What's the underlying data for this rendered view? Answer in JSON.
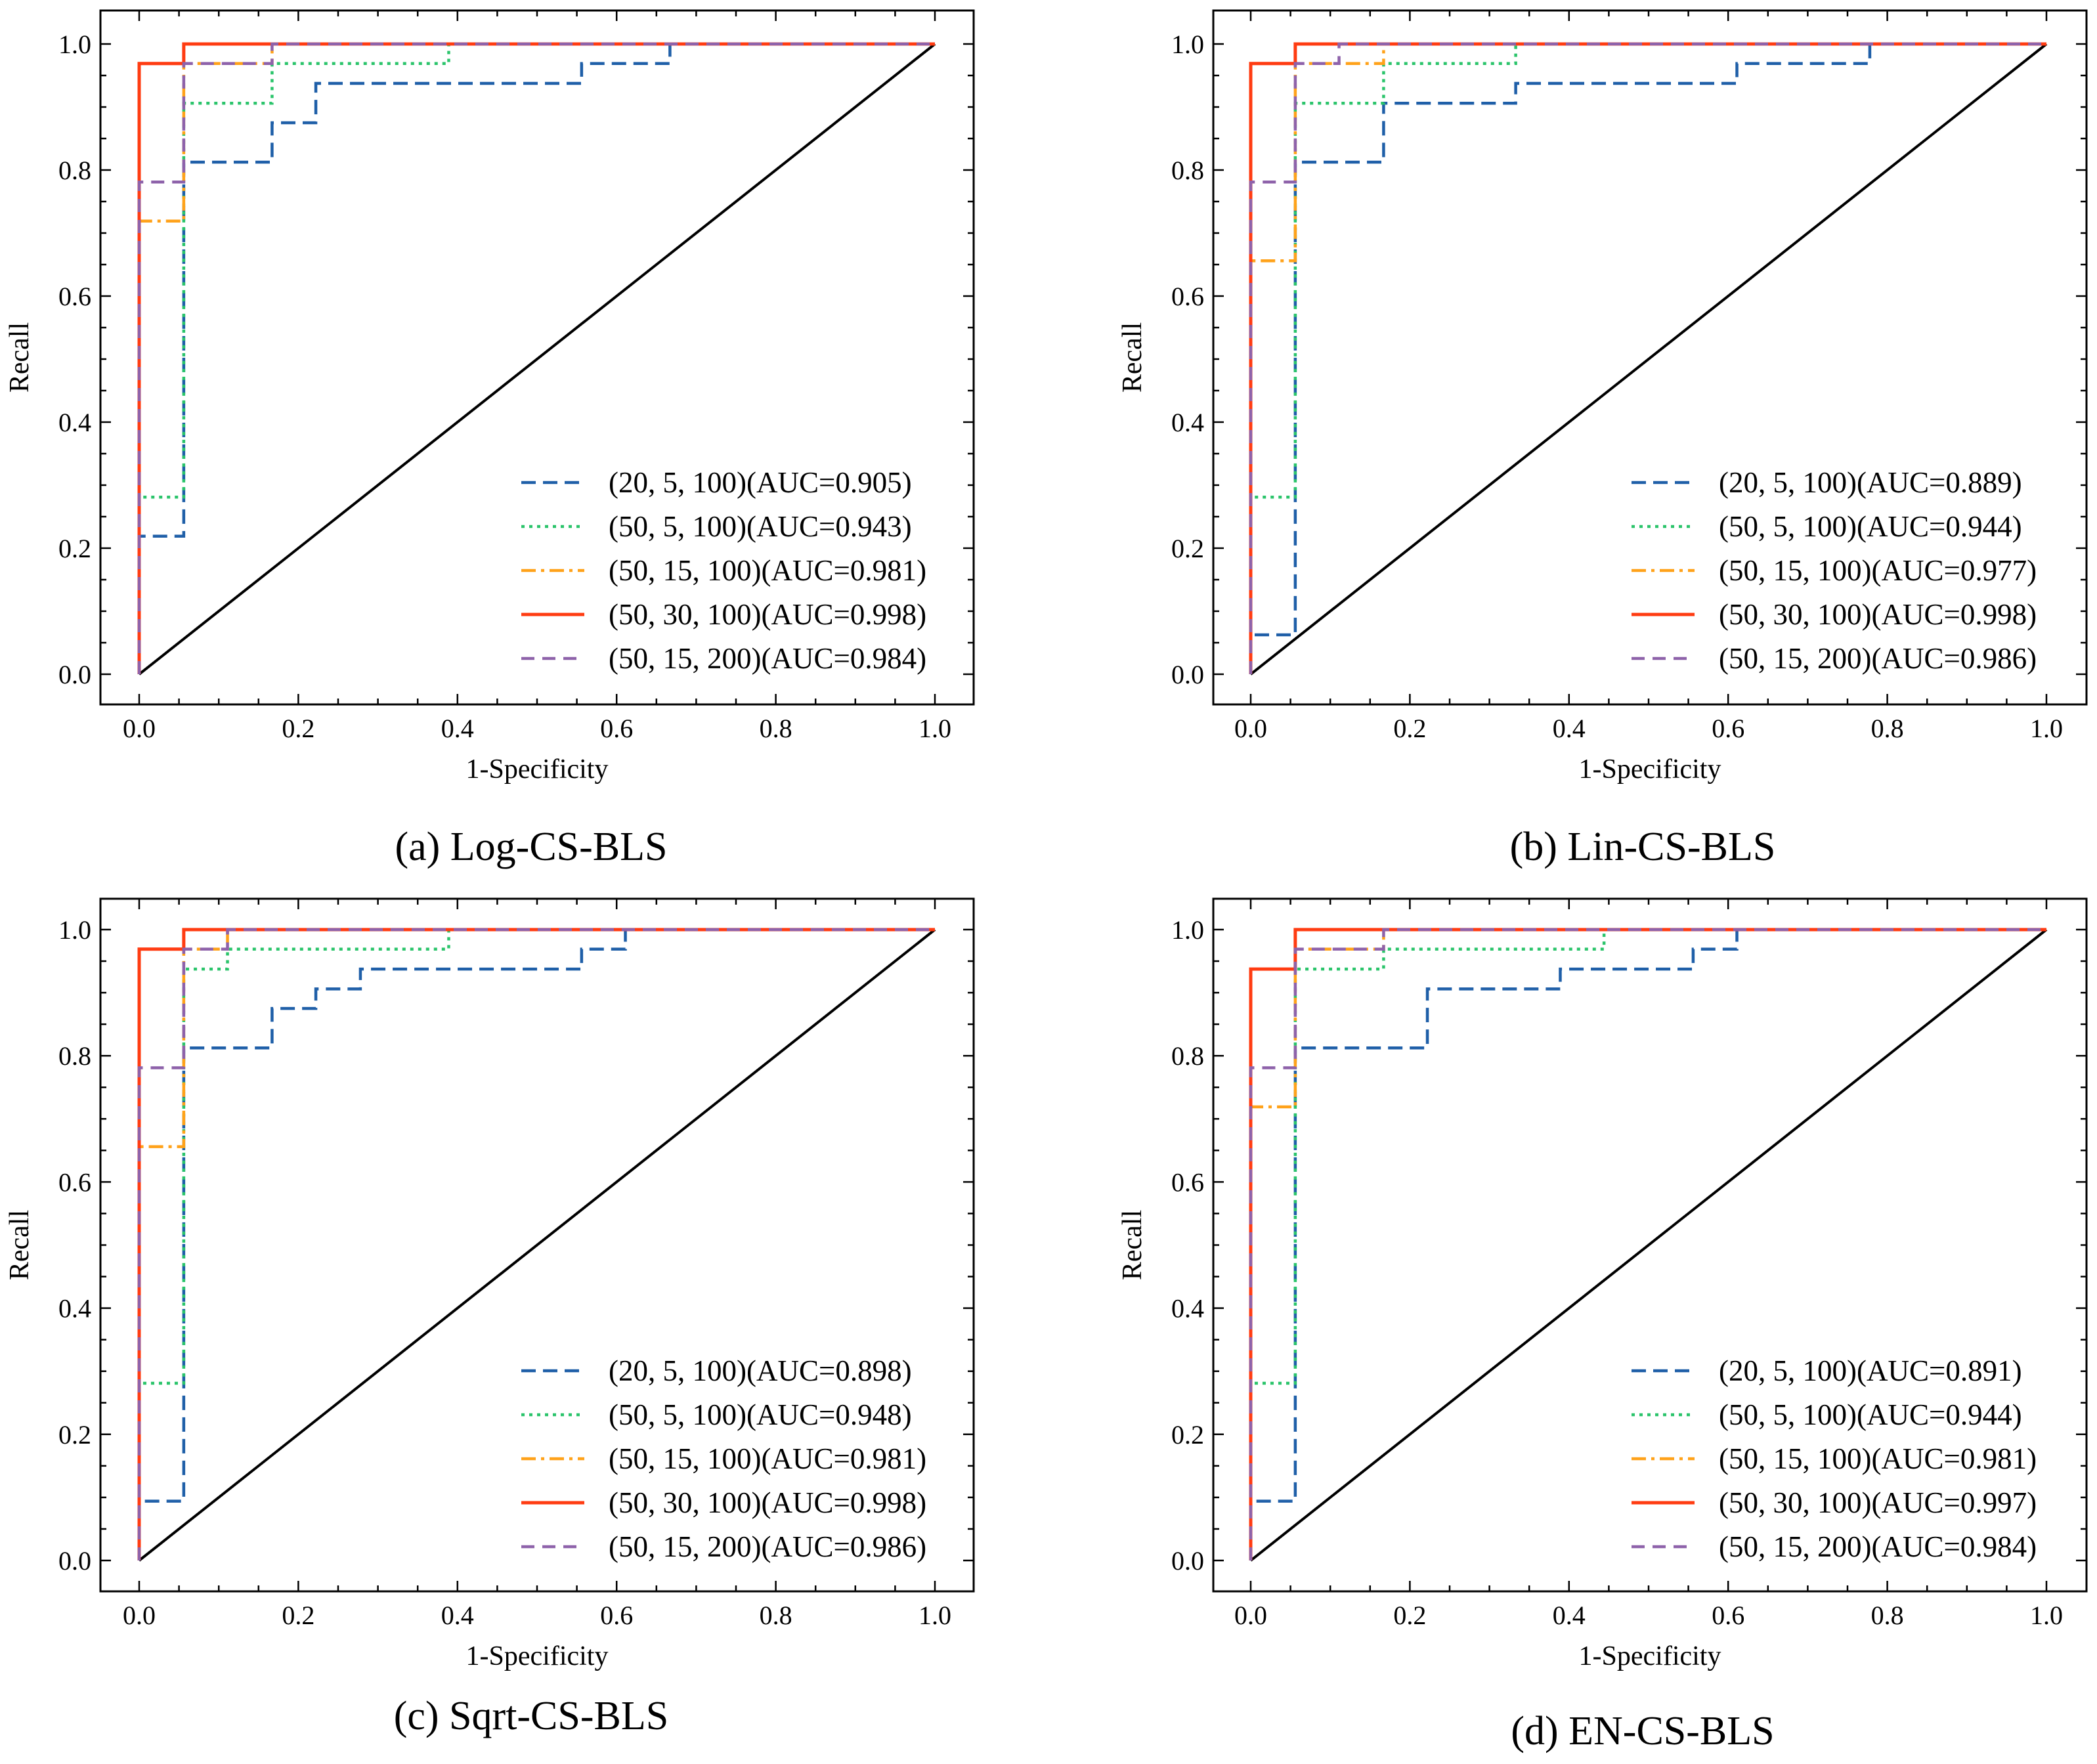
{
  "chart_data": [
    {
      "type": "line",
      "caption": "(a) Log-CS-BLS",
      "xlabel": "1-Specificity",
      "ylabel": "Recall",
      "xlim": [
        0,
        1
      ],
      "ylim": [
        0,
        1
      ],
      "xticks": [
        "0.0",
        "0.2",
        "0.4",
        "0.6",
        "0.8",
        "1.0"
      ],
      "yticks": [
        "0.0",
        "0.2",
        "0.4",
        "0.6",
        "0.8",
        "1.0"
      ],
      "legend_position": "lower-right",
      "series": [
        {
          "name": "(20, 5, 100)(AUC=0.905)",
          "style": "dashed",
          "color": "#1f5fa8",
          "steps": [
            [
              0,
              0.219
            ],
            [
              0.056,
              0.8125
            ],
            [
              0.167,
              0.875
            ],
            [
              0.222,
              0.9375
            ],
            [
              0.556,
              0.969
            ],
            [
              0.667,
              1
            ]
          ]
        },
        {
          "name": "(50, 5, 100)(AUC=0.943)",
          "style": "dotted",
          "color": "#2bc46b",
          "steps": [
            [
              0,
              0.281
            ],
            [
              0.056,
              0.906
            ],
            [
              0.167,
              0.969
            ],
            [
              0.389,
              1
            ]
          ]
        },
        {
          "name": "(50, 15, 100)(AUC=0.981)",
          "style": "dashdot",
          "color": "#ffa21a",
          "steps": [
            [
              0,
              0.719
            ],
            [
              0.056,
              0.969
            ],
            [
              0.167,
              1
            ]
          ]
        },
        {
          "name": "(50, 30, 100)(AUC=0.998)",
          "style": "solid",
          "color": "#ff3c12",
          "steps": [
            [
              0,
              0.969
            ],
            [
              0.056,
              1
            ]
          ]
        },
        {
          "name": "(50, 15, 200)(AUC=0.984)",
          "style": "dashed2",
          "color": "#8e62aa",
          "steps": [
            [
              0,
              0.781
            ],
            [
              0.056,
              0.969
            ],
            [
              0.167,
              1
            ]
          ]
        }
      ]
    },
    {
      "type": "line",
      "caption": "(b) Lin-CS-BLS",
      "xlabel": "1-Specificity",
      "ylabel": "Recall",
      "xlim": [
        0,
        1
      ],
      "ylim": [
        0,
        1
      ],
      "xticks": [
        "0.0",
        "0.2",
        "0.4",
        "0.6",
        "0.8",
        "1.0"
      ],
      "yticks": [
        "0.0",
        "0.2",
        "0.4",
        "0.6",
        "0.8",
        "1.0"
      ],
      "legend_position": "lower-right",
      "series": [
        {
          "name": "(20, 5, 100)(AUC=0.889)",
          "style": "dashed",
          "color": "#1f5fa8",
          "steps": [
            [
              0,
              0.0625
            ],
            [
              0.056,
              0.8125
            ],
            [
              0.167,
              0.906
            ],
            [
              0.333,
              0.9375
            ],
            [
              0.611,
              0.969
            ],
            [
              0.778,
              1
            ]
          ]
        },
        {
          "name": "(50, 5, 100)(AUC=0.944)",
          "style": "dotted",
          "color": "#2bc46b",
          "steps": [
            [
              0,
              0.281
            ],
            [
              0.056,
              0.906
            ],
            [
              0.167,
              0.969
            ],
            [
              0.333,
              1
            ]
          ]
        },
        {
          "name": "(50, 15, 100)(AUC=0.977)",
          "style": "dashdot",
          "color": "#ffa21a",
          "steps": [
            [
              0,
              0.656
            ],
            [
              0.056,
              0.969
            ],
            [
              0.167,
              1
            ]
          ]
        },
        {
          "name": "(50, 30, 100)(AUC=0.998)",
          "style": "solid",
          "color": "#ff3c12",
          "steps": [
            [
              0,
              0.969
            ],
            [
              0.056,
              1
            ]
          ]
        },
        {
          "name": "(50, 15, 200)(AUC=0.986)",
          "style": "dashed2",
          "color": "#8e62aa",
          "steps": [
            [
              0,
              0.781
            ],
            [
              0.056,
              0.969
            ],
            [
              0.111,
              1
            ]
          ]
        }
      ]
    },
    {
      "type": "line",
      "caption": "(c) Sqrt-CS-BLS",
      "xlabel": "1-Specificity",
      "ylabel": "Recall",
      "xlim": [
        0,
        1
      ],
      "ylim": [
        0,
        1
      ],
      "xticks": [
        "0.0",
        "0.2",
        "0.4",
        "0.6",
        "0.8",
        "1.0"
      ],
      "yticks": [
        "0.0",
        "0.2",
        "0.4",
        "0.6",
        "0.8",
        "1.0"
      ],
      "legend_position": "lower-right",
      "series": [
        {
          "name": "(20, 5, 100)(AUC=0.898)",
          "style": "dashed",
          "color": "#1f5fa8",
          "steps": [
            [
              0,
              0.094
            ],
            [
              0.056,
              0.8125
            ],
            [
              0.167,
              0.875
            ],
            [
              0.222,
              0.906
            ],
            [
              0.278,
              0.9375
            ],
            [
              0.556,
              0.969
            ],
            [
              0.611,
              1
            ]
          ]
        },
        {
          "name": "(50, 5, 100)(AUC=0.948)",
          "style": "dotted",
          "color": "#2bc46b",
          "steps": [
            [
              0,
              0.281
            ],
            [
              0.056,
              0.9375
            ],
            [
              0.111,
              0.969
            ],
            [
              0.389,
              1
            ]
          ]
        },
        {
          "name": "(50, 15, 100)(AUC=0.981)",
          "style": "dashdot",
          "color": "#ffa21a",
          "steps": [
            [
              0,
              0.656
            ],
            [
              0.056,
              0.969
            ],
            [
              0.111,
              1
            ]
          ]
        },
        {
          "name": "(50, 30, 100)(AUC=0.998)",
          "style": "solid",
          "color": "#ff3c12",
          "steps": [
            [
              0,
              0.969
            ],
            [
              0.056,
              1
            ]
          ]
        },
        {
          "name": "(50, 15, 200)(AUC=0.986)",
          "style": "dashed2",
          "color": "#8e62aa",
          "steps": [
            [
              0,
              0.781
            ],
            [
              0.056,
              0.969
            ],
            [
              0.111,
              1
            ]
          ]
        }
      ]
    },
    {
      "type": "line",
      "caption": "(d) EN-CS-BLS",
      "xlabel": "1-Specificity",
      "ylabel": "Recall",
      "xlim": [
        0,
        1
      ],
      "ylim": [
        0,
        1
      ],
      "xticks": [
        "0.0",
        "0.2",
        "0.4",
        "0.6",
        "0.8",
        "1.0"
      ],
      "yticks": [
        "0.0",
        "0.2",
        "0.4",
        "0.6",
        "0.8",
        "1.0"
      ],
      "legend_position": "lower-right",
      "series": [
        {
          "name": "(20, 5, 100)(AUC=0.891)",
          "style": "dashed",
          "color": "#1f5fa8",
          "steps": [
            [
              0,
              0.094
            ],
            [
              0.056,
              0.8125
            ],
            [
              0.222,
              0.906
            ],
            [
              0.389,
              0.9375
            ],
            [
              0.556,
              0.969
            ],
            [
              0.611,
              1
            ]
          ]
        },
        {
          "name": "(50, 5, 100)(AUC=0.944)",
          "style": "dotted",
          "color": "#2bc46b",
          "steps": [
            [
              0,
              0.281
            ],
            [
              0.056,
              0.9375
            ],
            [
              0.167,
              0.969
            ],
            [
              0.444,
              1
            ]
          ]
        },
        {
          "name": "(50, 15, 100)(AUC=0.981)",
          "style": "dashdot",
          "color": "#ffa21a",
          "steps": [
            [
              0,
              0.719
            ],
            [
              0.056,
              0.969
            ],
            [
              0.167,
              1
            ]
          ]
        },
        {
          "name": "(50, 30, 100)(AUC=0.997)",
          "style": "solid",
          "color": "#ff3c12",
          "steps": [
            [
              0,
              0.9375
            ],
            [
              0.056,
              1
            ]
          ]
        },
        {
          "name": "(50, 15, 200)(AUC=0.984)",
          "style": "dashed2",
          "color": "#8e62aa",
          "steps": [
            [
              0,
              0.781
            ],
            [
              0.056,
              0.969
            ],
            [
              0.167,
              1
            ]
          ]
        }
      ]
    }
  ]
}
